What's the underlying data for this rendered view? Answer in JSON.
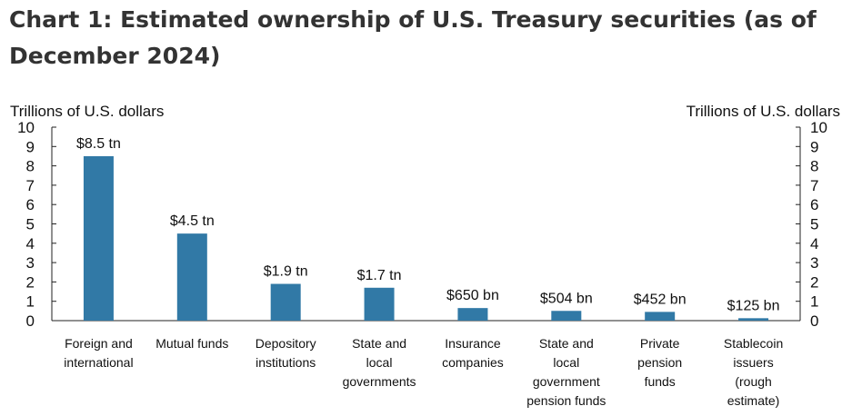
{
  "title": "Chart 1: Estimated ownership of U.S. Treasury securities (as of December 2024)",
  "chart_data": {
    "type": "bar",
    "title": "Chart 1: Estimated ownership of U.S. Treasury securities (as of December 2024)",
    "ylabel_left": "Trillions of U.S. dollars",
    "ylabel_right": "Trillions of U.S. dollars",
    "ylim": [
      0,
      10
    ],
    "yticks": [
      "0",
      "1",
      "2",
      "3",
      "4",
      "5",
      "6",
      "7",
      "8",
      "9",
      "10"
    ],
    "grid": false,
    "bar_color": "#3179a6",
    "categories": [
      [
        "Foreign and",
        "international"
      ],
      [
        "Mutual funds"
      ],
      [
        "Depository",
        "institutions"
      ],
      [
        "State and",
        "local",
        "governments"
      ],
      [
        "Insurance",
        "companies"
      ],
      [
        "State and",
        "local",
        "government",
        "pension funds"
      ],
      [
        "Private",
        "pension",
        "funds"
      ],
      [
        "Stablecoin",
        "issuers",
        "(rough",
        "estimate)"
      ]
    ],
    "values": [
      8.5,
      4.5,
      1.9,
      1.7,
      0.65,
      0.504,
      0.452,
      0.125
    ],
    "data_labels": [
      "$8.5 tn",
      "$4.5 tn",
      "$1.9 tn",
      "$1.7 tn",
      "$650 bn",
      "$504 bn",
      "$452 bn",
      "$125 bn"
    ]
  }
}
